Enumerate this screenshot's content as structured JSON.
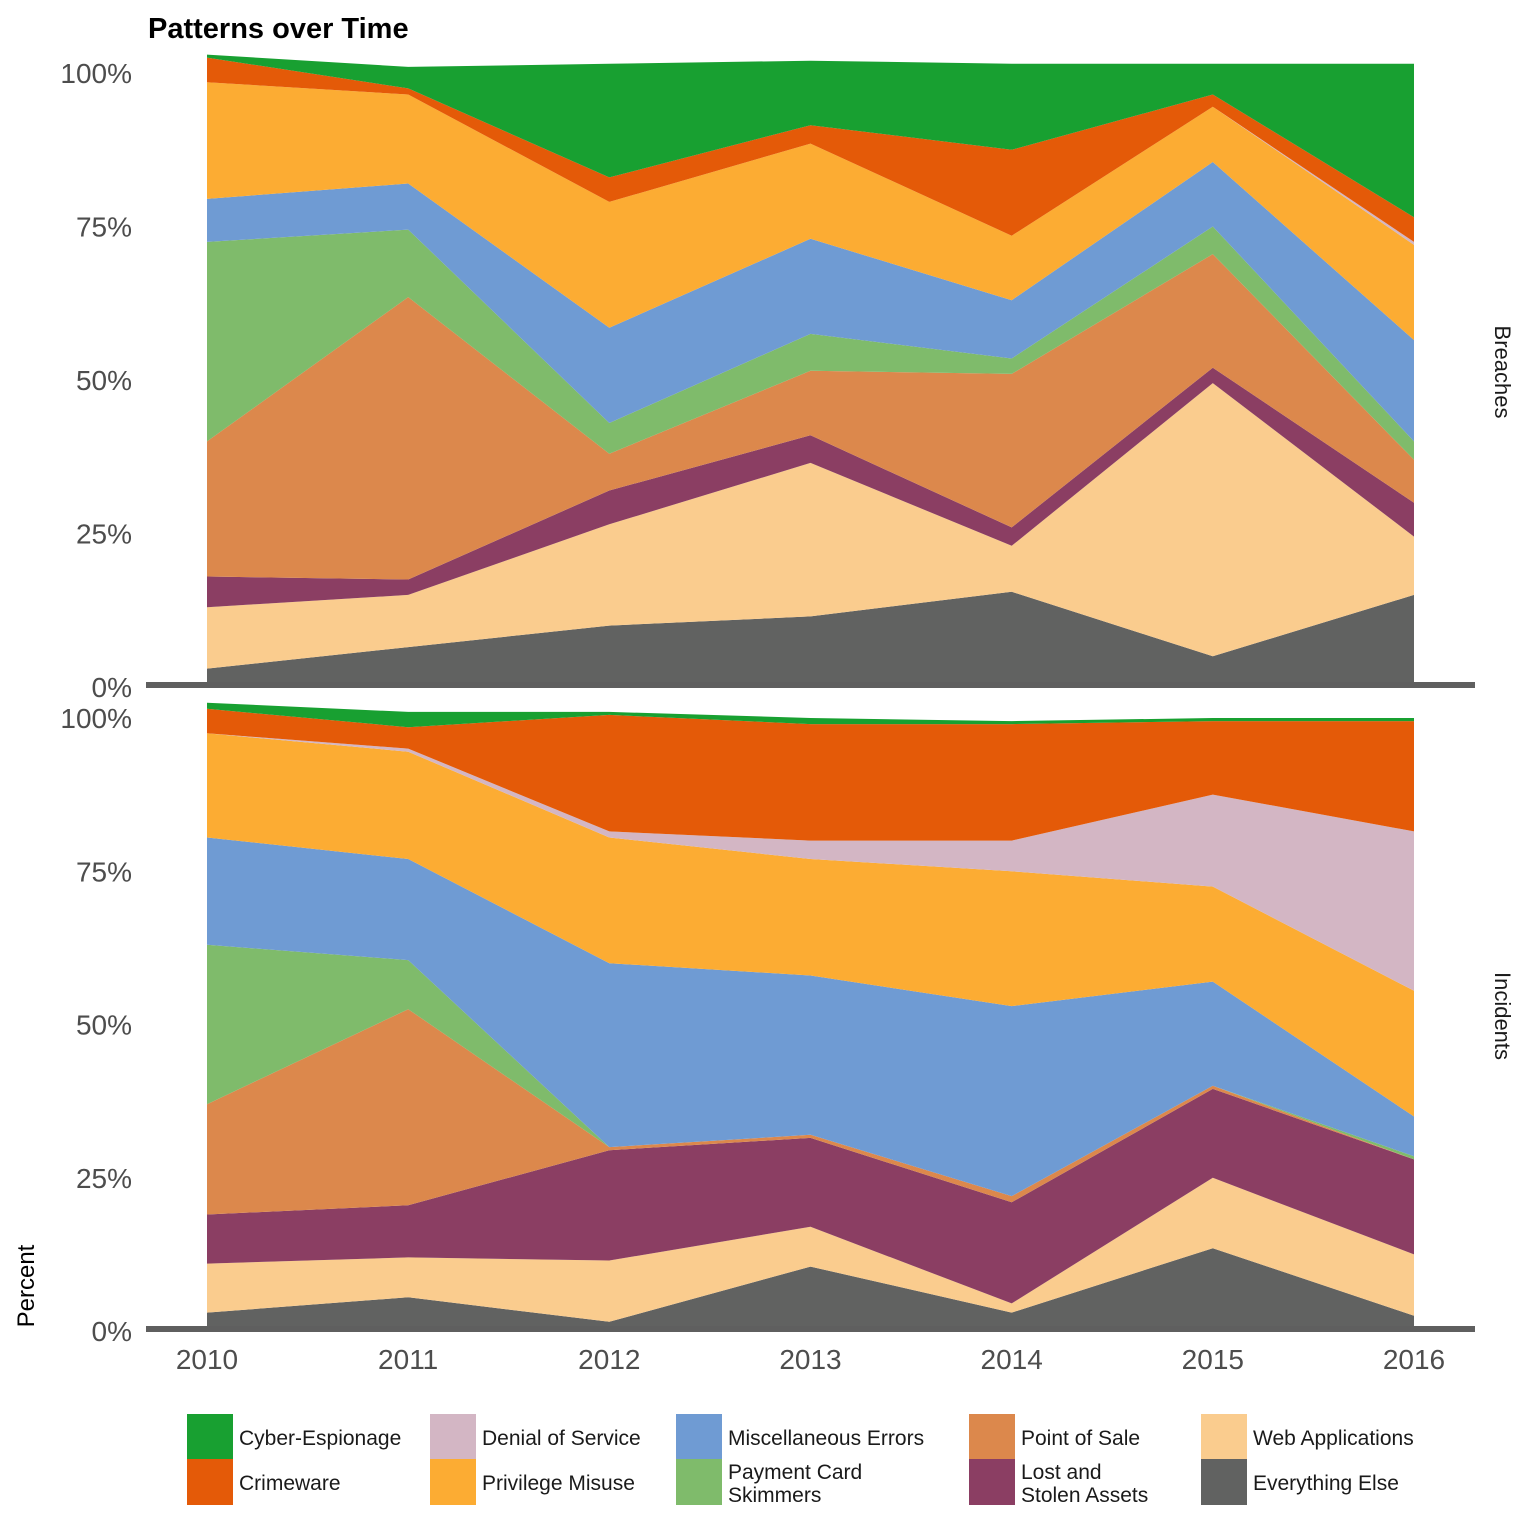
{
  "chart_data": {
    "type": "area",
    "title": "Patterns over Time",
    "xlabel": "",
    "ylabel": "Percent",
    "x": [
      "2010",
      "2011",
      "2012",
      "2013",
      "2014",
      "2015",
      "2016"
    ],
    "y_ticks": [
      "0%",
      "25%",
      "50%",
      "75%",
      "100%"
    ],
    "ylim": [
      0,
      100
    ],
    "stacked": true,
    "legend_position": "bottom",
    "series_order_bottom_to_top": [
      "Everything Else",
      "Web Applications",
      "Lost and Stolen Assets",
      "Point of Sale",
      "Payment Card Skimmers",
      "Miscellaneous Errors",
      "Privilege Misuse",
      "Denial of Service",
      "Crimeware",
      "Cyber-Espionage"
    ],
    "legend": [
      {
        "name": "Cyber-Espionage",
        "color": "#18a031"
      },
      {
        "name": "Crimeware",
        "color": "#e45a08"
      },
      {
        "name": "Denial of Service",
        "color": "#d3b6c4"
      },
      {
        "name": "Privilege Misuse",
        "color": "#fcac33"
      },
      {
        "name": "Miscellaneous Errors",
        "color": "#6f9bd3"
      },
      {
        "name": "Payment Card Skimmers",
        "color": "#7fbb6b"
      },
      {
        "name": "Point of Sale",
        "color": "#dc884c"
      },
      {
        "name": "Lost and Stolen Assets",
        "color": "#8b3e63"
      },
      {
        "name": "Web Applications",
        "color": "#facc8e"
      },
      {
        "name": "Everything Else",
        "color": "#616261"
      }
    ],
    "panels": [
      {
        "label": "Breaches",
        "series": [
          {
            "name": "Everything Else",
            "values": [
              3,
              6.5,
              10,
              11.5,
              15.5,
              5,
              15
            ]
          },
          {
            "name": "Web Applications",
            "values": [
              10,
              8.5,
              16.5,
              25,
              7.5,
              44.5,
              9.5
            ]
          },
          {
            "name": "Lost and Stolen Assets",
            "values": [
              5,
              2.5,
              5.5,
              4.5,
              3,
              2.5,
              5.5
            ]
          },
          {
            "name": "Point of Sale",
            "values": [
              22,
              46,
              6,
              10.5,
              25,
              18.5,
              7
            ]
          },
          {
            "name": "Payment Card Skimmers",
            "values": [
              32.5,
              11,
              5,
              6,
              2.5,
              4.5,
              3
            ]
          },
          {
            "name": "Miscellaneous Errors",
            "values": [
              7,
              7.5,
              15.5,
              15.5,
              9.5,
              10.5,
              16.5
            ]
          },
          {
            "name": "Privilege Misuse",
            "values": [
              19,
              14.5,
              20.5,
              15.5,
              10.5,
              9,
              15.5
            ]
          },
          {
            "name": "Denial of Service",
            "values": [
              0,
              0,
              0,
              0,
              0,
              0,
              0.5
            ]
          },
          {
            "name": "Crimeware",
            "values": [
              4,
              1,
              4,
              3,
              14,
              2,
              4
            ]
          },
          {
            "name": "Cyber-Espionage",
            "values": [
              0.5,
              3.5,
              18.5,
              10.5,
              14,
              5,
              25
            ]
          }
        ]
      },
      {
        "label": "Incidents",
        "series": [
          {
            "name": "Everything Else",
            "values": [
              3,
              5.5,
              1.5,
              10.5,
              3,
              13.5,
              2.5
            ]
          },
          {
            "name": "Web Applications",
            "values": [
              8,
              6.5,
              10,
              6.5,
              1.5,
              11.5,
              10
            ]
          },
          {
            "name": "Lost and Stolen Assets",
            "values": [
              8,
              8.5,
              18,
              14.5,
              16.5,
              14.5,
              15.5
            ]
          },
          {
            "name": "Point of Sale",
            "values": [
              18,
              32,
              0.5,
              0.5,
              1,
              0.5,
              0
            ]
          },
          {
            "name": "Payment Card Skimmers",
            "values": [
              26,
              8,
              0,
              0,
              0,
              0,
              0.5
            ]
          },
          {
            "name": "Miscellaneous Errors",
            "values": [
              17.5,
              16.5,
              30,
              26,
              31,
              17,
              6.5
            ]
          },
          {
            "name": "Privilege Misuse",
            "values": [
              17,
              17.5,
              20.5,
              19,
              22,
              15.5,
              20.5
            ]
          },
          {
            "name": "Denial of Service",
            "values": [
              0,
              0.5,
              1,
              3,
              5,
              15,
              26
            ]
          },
          {
            "name": "Crimeware",
            "values": [
              4,
              3.5,
              19,
              19,
              19,
              12,
              18
            ]
          },
          {
            "name": "Cyber-Espionage",
            "values": [
              1,
              2.5,
              0.5,
              1,
              0.5,
              0.5,
              0.5
            ]
          }
        ]
      }
    ]
  }
}
